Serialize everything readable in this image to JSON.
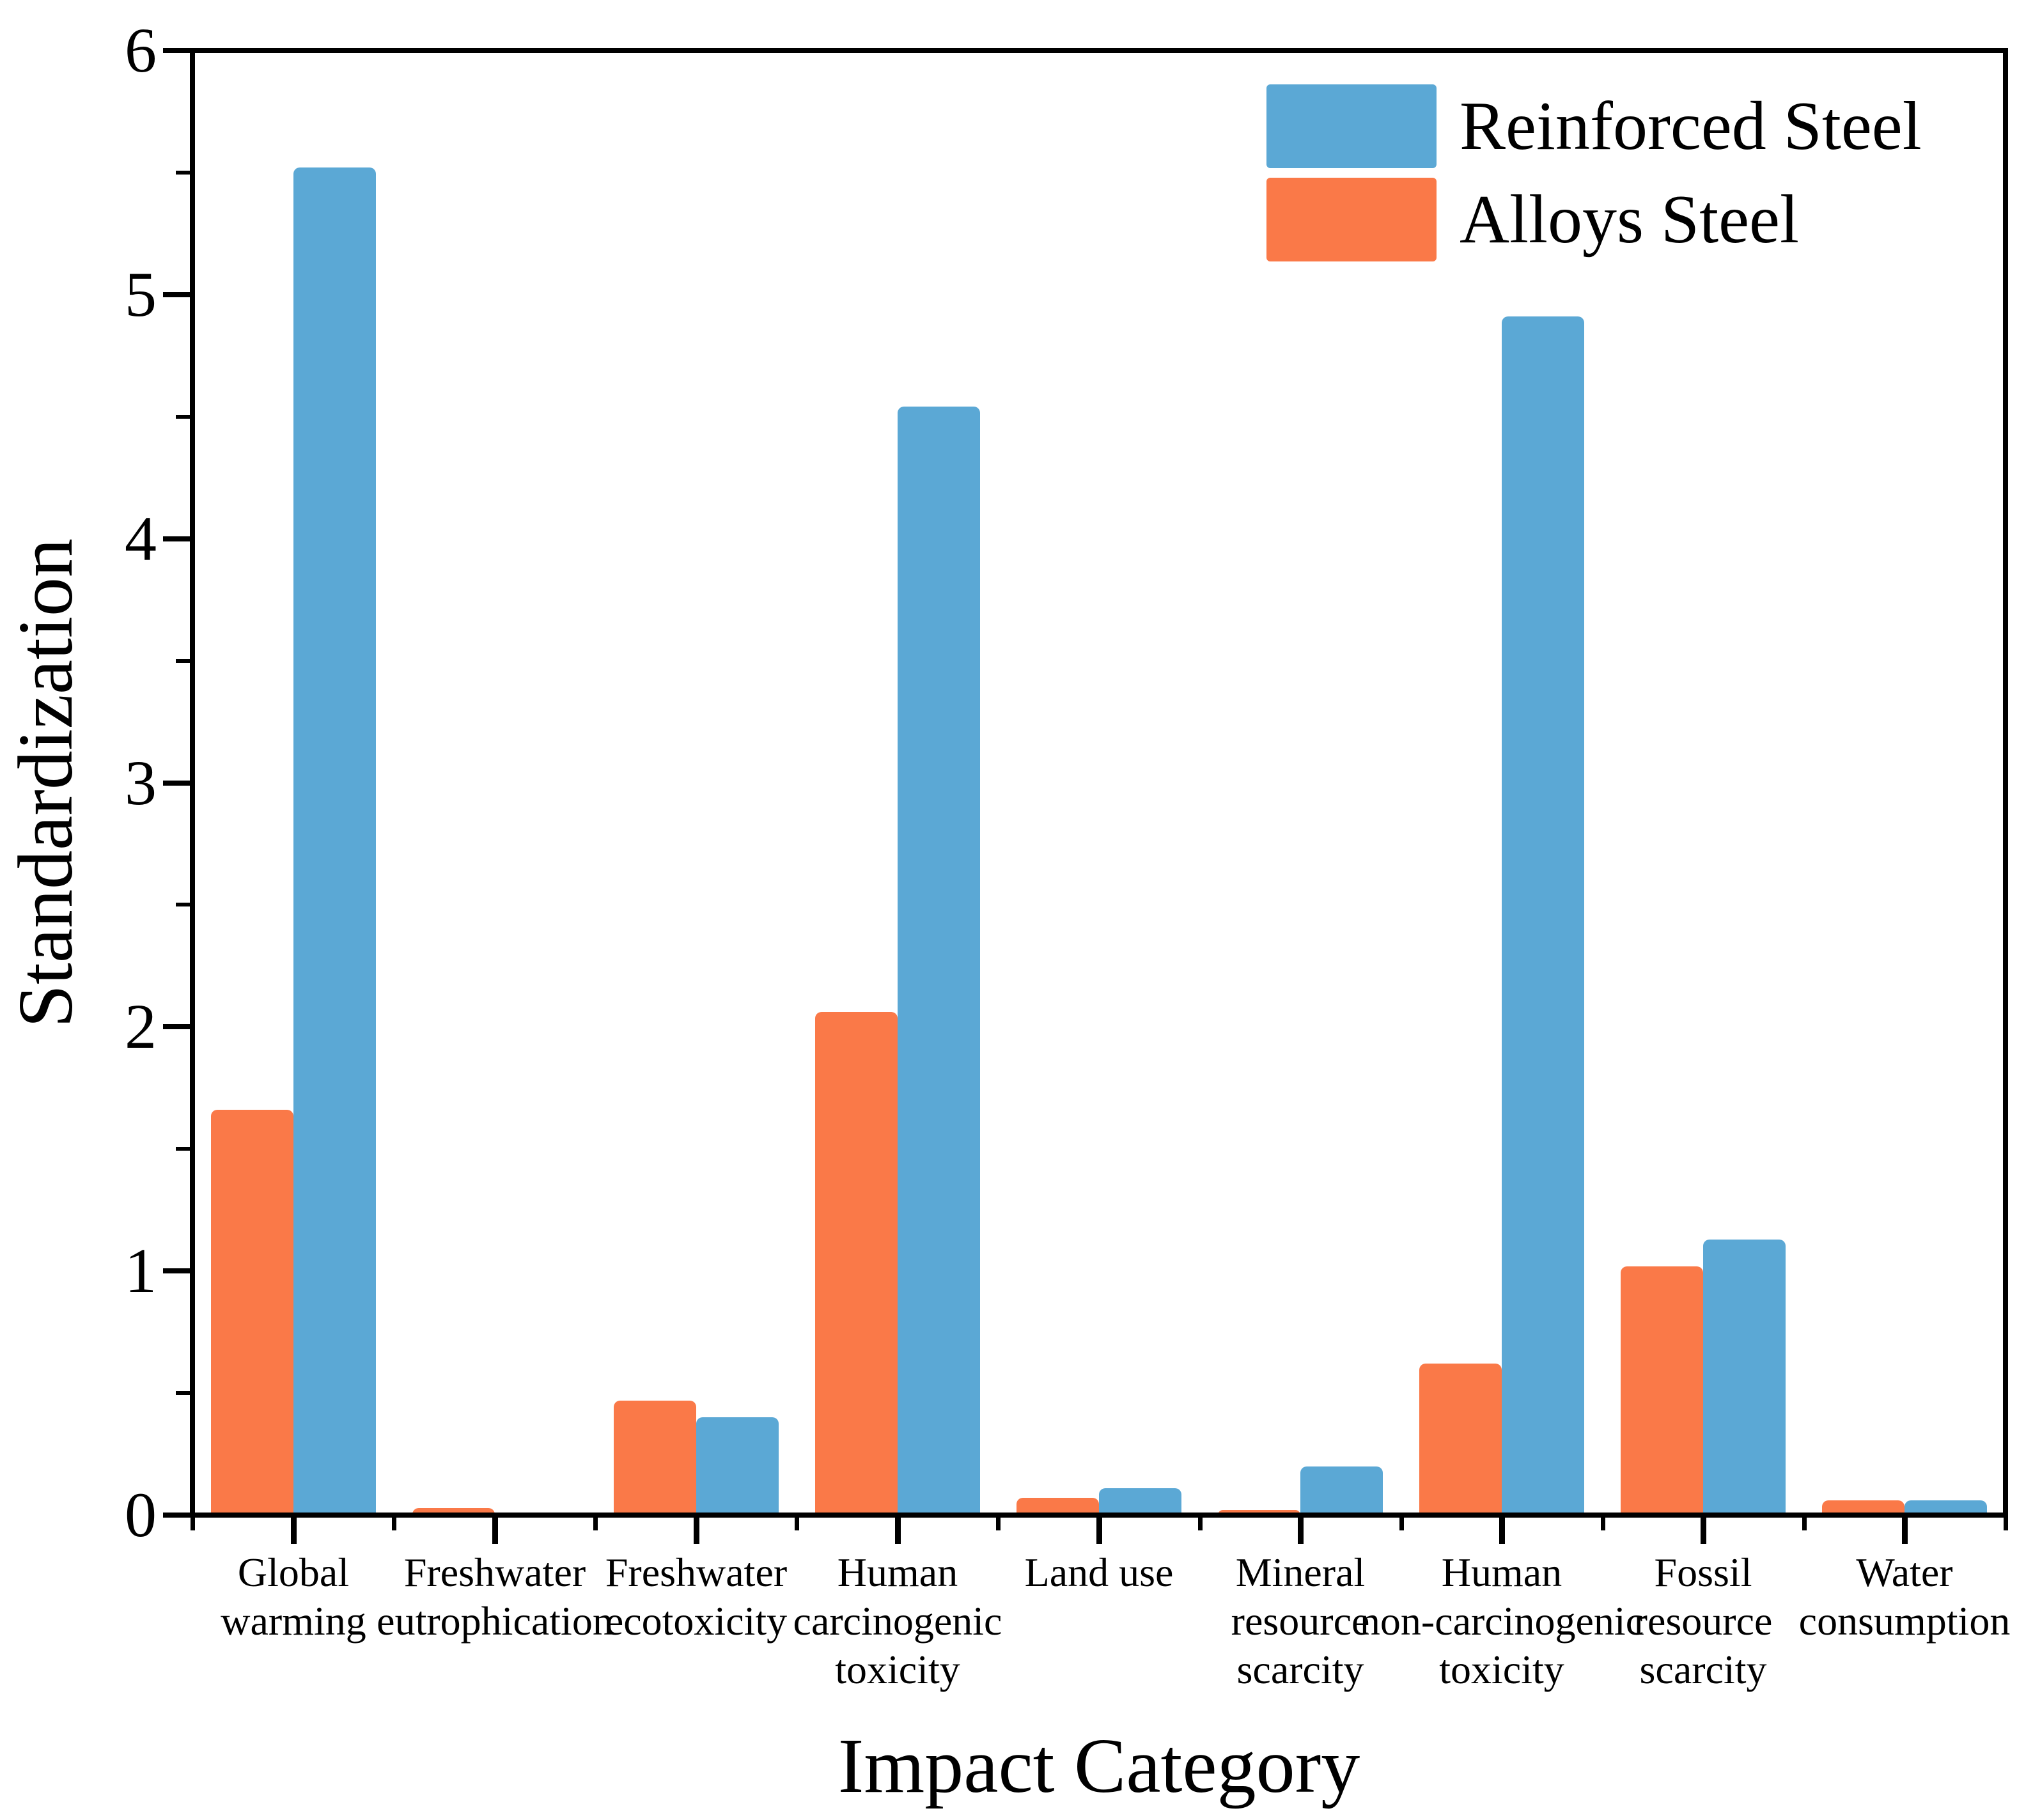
{
  "chart_data": {
    "type": "bar",
    "title": "",
    "xlabel": "Impact Category",
    "ylabel": "Standardization",
    "ylim": [
      0,
      6
    ],
    "y_major_ticks": [
      "0",
      "1",
      "2",
      "3",
      "4",
      "5",
      "6"
    ],
    "y_minor_tick_step": 0.5,
    "grid": "off",
    "legend_position": "top-right-inside",
    "categories": [
      "Global warming",
      "Freshwater eutrophication",
      "Freshwater ecotoxicity",
      "Human carcinogenic toxicity",
      "Land use",
      "Mineral resource scarcity",
      "Human non-carcinogenic toxicity",
      "Fossil resource scarcity",
      "Water consumption"
    ],
    "category_display_lines": [
      [
        "Global",
        "warming"
      ],
      [
        "Freshwater",
        "eutrophication"
      ],
      [
        "Freshwater",
        "ecotoxicity"
      ],
      [
        "Human",
        "carcinogenic",
        "toxicity"
      ],
      [
        "Land use"
      ],
      [
        "Mineral",
        "resource",
        "scarcity"
      ],
      [
        "Human",
        "non-carcinogenic",
        "toxicity"
      ],
      [
        "Fossil",
        "resource",
        "scarcity"
      ],
      [
        "Water",
        "consumption"
      ]
    ],
    "series": [
      {
        "name": "Reinforced Steel",
        "color": "#5BA8D5",
        "bar_side": "right",
        "values": [
          5.52,
          0,
          0.4,
          4.54,
          0.11,
          0.2,
          4.91,
          1.13,
          0.06
        ]
      },
      {
        "name": "Alloys Steel",
        "color": "#FA7948",
        "bar_side": "left",
        "values": [
          1.66,
          0.03,
          0.47,
          2.06,
          0.07,
          0.02,
          0.62,
          1.02,
          0.06
        ]
      }
    ],
    "axis_color": "#000000",
    "background_color": "#FFFFFF"
  }
}
